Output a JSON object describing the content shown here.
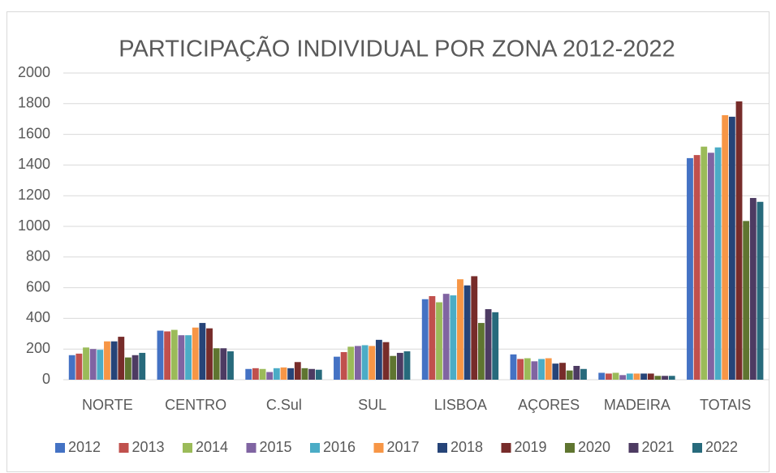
{
  "chart_data": {
    "type": "bar",
    "title": "PARTICIPAÇÃO INDIVIDUAL POR ZONA 2012-2022",
    "categories": [
      "NORTE",
      "CENTRO",
      "C.Sul",
      "SUL",
      "LISBOA",
      "AÇORES",
      "MADEIRA",
      "TOTAIS"
    ],
    "series": [
      {
        "name": "2012",
        "color": "#4472c4",
        "values": [
          160,
          320,
          70,
          150,
          525,
          165,
          45,
          1445
        ]
      },
      {
        "name": "2013",
        "color": "#c0504d",
        "values": [
          170,
          315,
          75,
          180,
          545,
          135,
          40,
          1465
        ]
      },
      {
        "name": "2014",
        "color": "#9bbb59",
        "values": [
          210,
          325,
          70,
          215,
          505,
          140,
          45,
          1520
        ]
      },
      {
        "name": "2015",
        "color": "#8064a2",
        "values": [
          200,
          290,
          50,
          220,
          560,
          120,
          30,
          1480
        ]
      },
      {
        "name": "2016",
        "color": "#4bacc6",
        "values": [
          195,
          290,
          75,
          225,
          550,
          135,
          40,
          1515
        ]
      },
      {
        "name": "2017",
        "color": "#f79646",
        "values": [
          250,
          340,
          80,
          220,
          655,
          140,
          40,
          1725
        ]
      },
      {
        "name": "2018",
        "color": "#264478",
        "values": [
          250,
          370,
          75,
          260,
          615,
          105,
          40,
          1715
        ]
      },
      {
        "name": "2019",
        "color": "#772c2a",
        "values": [
          280,
          335,
          115,
          245,
          675,
          110,
          40,
          1815
        ]
      },
      {
        "name": "2020",
        "color": "#5f7530",
        "values": [
          145,
          205,
          75,
          155,
          370,
          60,
          25,
          1035
        ]
      },
      {
        "name": "2021",
        "color": "#4d3b62",
        "values": [
          160,
          205,
          70,
          175,
          460,
          90,
          25,
          1185
        ]
      },
      {
        "name": "2022",
        "color": "#276a7c",
        "values": [
          175,
          185,
          65,
          185,
          440,
          70,
          25,
          1160
        ]
      }
    ],
    "ylim": [
      0,
      2000
    ],
    "yticks": [
      0,
      200,
      400,
      600,
      800,
      1000,
      1200,
      1400,
      1600,
      1800,
      2000
    ],
    "grid": true,
    "legend": "bottom"
  }
}
